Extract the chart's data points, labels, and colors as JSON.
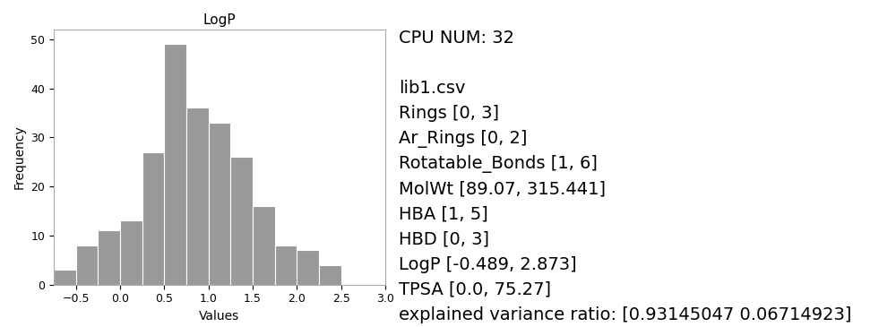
{
  "title": "LogP",
  "xlabel": "Values",
  "ylabel": "Frequency",
  "bar_color": "#999999",
  "bar_heights": [
    3,
    8,
    11,
    13,
    27,
    49,
    36,
    33,
    26,
    16,
    8,
    7,
    4
  ],
  "bar_left_start": -0.75,
  "bar_width": 0.25,
  "xlim": [
    -0.75,
    3.0
  ],
  "ylim": [
    0,
    52
  ],
  "xticks": [
    -0.5,
    0.0,
    0.5,
    1.0,
    1.5,
    2.0,
    2.5,
    3.0
  ],
  "yticks": [
    0,
    10,
    20,
    30,
    40,
    50
  ],
  "info_lines": [
    "CPU NUM: 32",
    "",
    "lib1.csv",
    "Rings [0, 3]",
    "Ar_Rings [0, 2]",
    "Rotatable_Bonds [1, 6]",
    "MolWt [89.07, 315.441]",
    "HBA [1, 5]",
    "HBD [0, 3]",
    "LogP [-0.489, 2.873]",
    "TPSA [0.0, 75.27]",
    "explained variance ratio: [0.93145047 0.06714923]"
  ],
  "info_fontsize": 14,
  "title_fontsize": 11,
  "axis_label_fontsize": 10,
  "tick_fontsize": 9,
  "background_color": "#ffffff"
}
